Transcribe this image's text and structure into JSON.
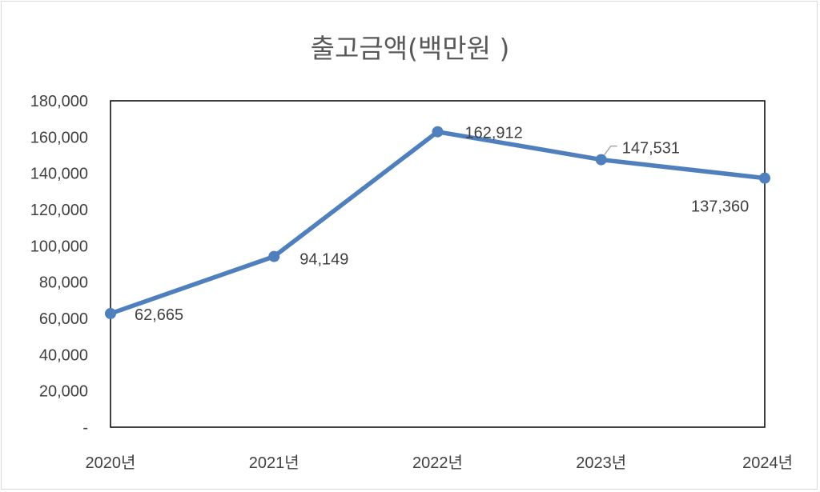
{
  "chart_data": {
    "type": "line",
    "title": "출고금액(백만원 )",
    "categories": [
      "2020년",
      "2021년",
      "2022년",
      "2023년",
      "2024년"
    ],
    "series": [
      {
        "values": [
          62665,
          94149,
          162912,
          147531,
          137360
        ]
      }
    ],
    "data_labels": [
      "62,665",
      "94,149",
      "162,912",
      "147,531",
      "137,360"
    ],
    "y_ticks": [
      "-",
      "20,000",
      "40,000",
      "60,000",
      "80,000",
      "100,000",
      "120,000",
      "140,000",
      "160,000",
      "180,000"
    ],
    "ylim": [
      0,
      180000
    ],
    "grid": false,
    "legend": "none",
    "colors": {
      "line": "#4f7fbd",
      "axis": "#000000",
      "text": "#404040"
    }
  }
}
